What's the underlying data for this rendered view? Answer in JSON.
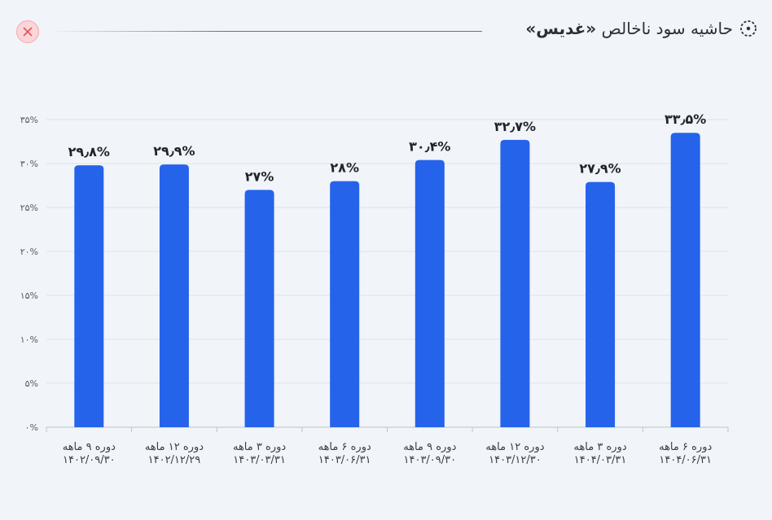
{
  "header": {
    "title_prefix": "حاشیه سود ناخالص ",
    "company": "«غدیس»",
    "close_label": "×"
  },
  "colors": {
    "bar": "#2563eb",
    "grid": "#dfe3ea",
    "axis": "#bfc4cc",
    "close_bg": "#fbd5d8",
    "close_x": "#e0525c"
  },
  "chart_data": {
    "type": "bar",
    "categories": [
      [
        "دوره ۹ ماهه",
        "۱۴۰۲/۰۹/۳۰"
      ],
      [
        "دوره ۱۲ ماهه",
        "۱۴۰۲/۱۲/۲۹"
      ],
      [
        "دوره ۳ ماهه",
        "۱۴۰۳/۰۳/۳۱"
      ],
      [
        "دوره ۶ ماهه",
        "۱۴۰۳/۰۶/۳۱"
      ],
      [
        "دوره ۹ ماهه",
        "۱۴۰۳/۰۹/۳۰"
      ],
      [
        "دوره ۱۲ ماهه",
        "۱۴۰۳/۱۲/۳۰"
      ],
      [
        "دوره ۳ ماهه",
        "۱۴۰۴/۰۳/۳۱"
      ],
      [
        "دوره ۶ ماهه",
        "۱۴۰۴/۰۶/۳۱"
      ]
    ],
    "values": [
      29.8,
      29.9,
      27,
      28,
      30.4,
      32.7,
      27.9,
      33.5
    ],
    "data_labels": [
      "۲۹٫۸%",
      "۲۹٫۹%",
      "۲۷%",
      "۲۸%",
      "۳۰٫۴%",
      "۳۲٫۷%",
      "۲۷٫۹%",
      "۳۳٫۵%"
    ],
    "yticks": [
      0,
      5,
      10,
      15,
      20,
      25,
      30,
      35
    ],
    "ytick_labels": [
      "۰%",
      "۵%",
      "۱۰%",
      "۱۵%",
      "۲۰%",
      "۲۵%",
      "۳۰%",
      "۳۵%"
    ],
    "ylim": [
      0,
      35
    ],
    "grid": true,
    "title": "",
    "xlabel": "",
    "ylabel": ""
  }
}
